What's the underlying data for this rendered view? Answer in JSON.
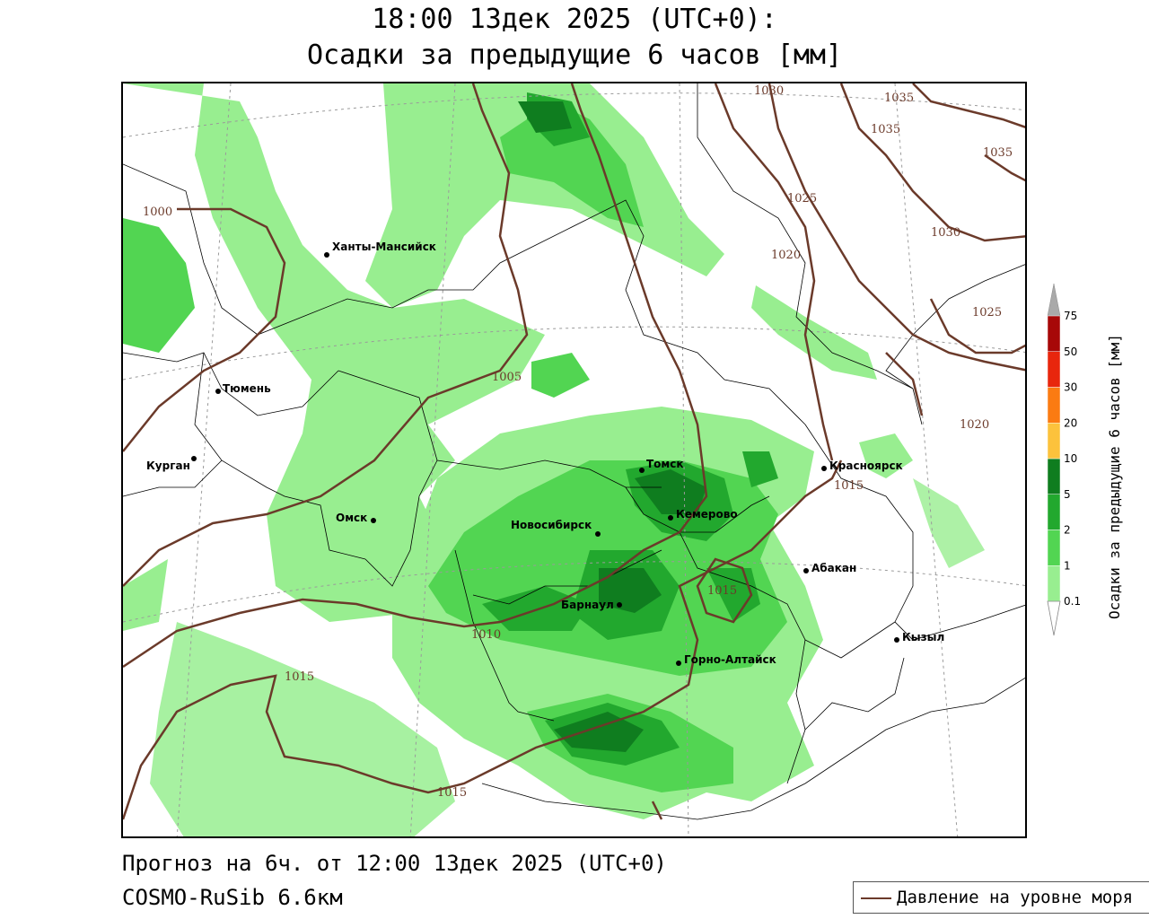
{
  "header": {
    "title_line1": "18:00 13дек 2025 (UTC+0):",
    "title_line2": "Осадки за предыдущие 6 часов [мм]"
  },
  "footer": {
    "forecast": "Прогноз на 6ч. от 12:00 13дек 2025 (UTC+0)",
    "model": "COSMO-RuSib 6.6км"
  },
  "legend": {
    "pressure_label": "Давление на уровне моря"
  },
  "colorbar": {
    "title": "Осадки за предыдущие 6 часов [мм]",
    "levels": [
      "0.1",
      "1",
      "2",
      "5",
      "10",
      "20",
      "30",
      "50",
      "75"
    ],
    "colors": [
      "#98ee90",
      "#52d552",
      "#22a82e",
      "#0f7d1f",
      "#fcc23c",
      "#fb7b12",
      "#e8260d",
      "#a70808"
    ],
    "over_color": "#a9a9a9",
    "under_color": "#ffffff"
  },
  "cities": [
    {
      "name": "Ханты-Мансийск"
    },
    {
      "name": "Тюмень"
    },
    {
      "name": "Курган"
    },
    {
      "name": "Омск"
    },
    {
      "name": "Новосибирск"
    },
    {
      "name": "Томск"
    },
    {
      "name": "Кемерово"
    },
    {
      "name": "Красноярск"
    },
    {
      "name": "Барнаул"
    },
    {
      "name": "Абакан"
    },
    {
      "name": "Горно-Алтайск"
    },
    {
      "name": "Кызыл"
    }
  ],
  "isobar_labels": [
    "1030",
    "1035",
    "1035",
    "1035",
    "1025",
    "1030",
    "1020",
    "1025",
    "1000",
    "1005",
    "1020",
    "1015",
    "1015",
    "1010",
    "1015",
    "1015"
  ],
  "colors": {
    "isobar": "#6b3a2a",
    "border": "#000000",
    "grid": "#9a9a9a"
  }
}
